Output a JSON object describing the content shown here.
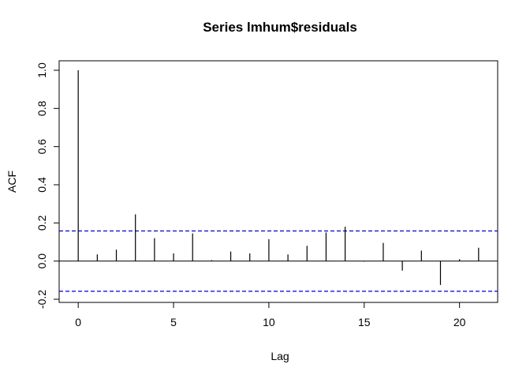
{
  "chart_data": {
    "type": "bar",
    "title": "Series  lmhum$residuals",
    "xlabel": "Lag",
    "ylabel": "ACF",
    "xlim": [
      -1,
      22
    ],
    "ylim": [
      -0.2,
      1.0
    ],
    "x_ticks": [
      0,
      5,
      10,
      15,
      20
    ],
    "y_ticks": [
      -0.2,
      0.0,
      0.2,
      0.4,
      0.6,
      0.8,
      1.0
    ],
    "y_tick_labels": [
      "-0.2",
      "0.0",
      "0.2",
      "0.4",
      "0.6",
      "0.8",
      "1.0"
    ],
    "x": [
      0,
      1,
      2,
      3,
      4,
      5,
      6,
      7,
      8,
      9,
      10,
      11,
      12,
      13,
      14,
      15,
      16,
      17,
      18,
      19,
      20,
      21
    ],
    "values": [
      1.0,
      0.035,
      0.06,
      0.245,
      0.12,
      0.04,
      0.145,
      0.005,
      0.05,
      0.04,
      0.115,
      0.035,
      0.08,
      0.15,
      0.18,
      -0.003,
      0.095,
      -0.05,
      0.055,
      -0.125,
      0.01,
      0.07
    ],
    "confidence_bound": 0.158,
    "ci_color": "#0000cd",
    "grid": false
  }
}
